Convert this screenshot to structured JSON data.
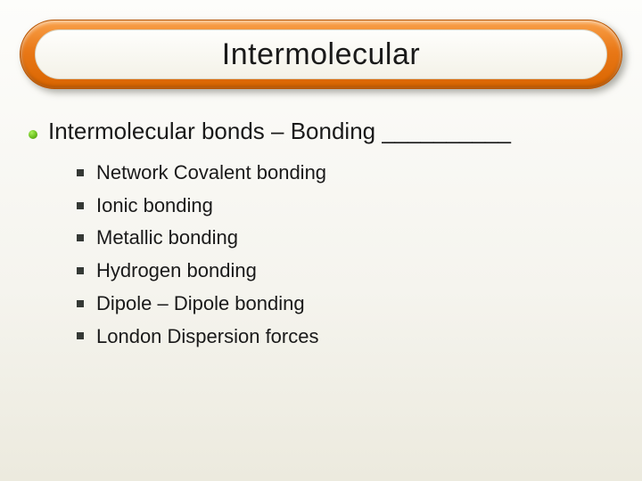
{
  "slide": {
    "title": "Intermolecular",
    "title_fontsize": 34,
    "title_color": "#1a1a1a",
    "bar_gradient": [
      "#f9a14a",
      "#e97817",
      "#d96500"
    ],
    "bar_border": "#b85400",
    "background_gradient": [
      "#fdfdfb",
      "#f5f4ee",
      "#eceade"
    ],
    "level1": {
      "bullet_style": "circle",
      "bullet_colors": [
        "#a8f058",
        "#6abf1e",
        "#4a8c0f"
      ],
      "bullet_size": 10,
      "text": "Intermolecular bonds – Bonding __________",
      "fontsize": 26,
      "color": "#1a1a1a"
    },
    "level2": {
      "bullet_style": "square",
      "bullet_color": "#353935",
      "bullet_size": 8,
      "fontsize": 22,
      "color": "#1a1a1a",
      "items": [
        "Network Covalent bonding",
        "Ionic bonding",
        "Metallic bonding",
        "Hydrogen bonding",
        "Dipole – Dipole bonding",
        "London Dispersion forces"
      ]
    }
  }
}
